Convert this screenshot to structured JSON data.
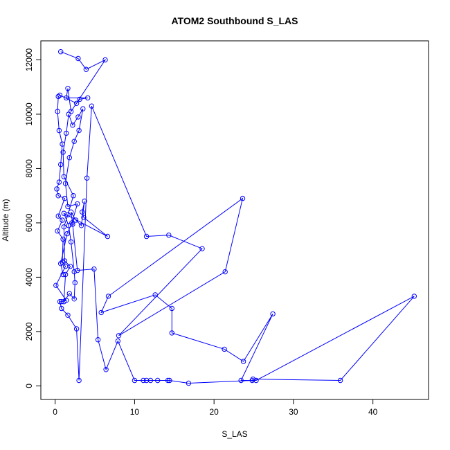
{
  "chart_data": {
    "type": "line",
    "title": "ATOM2 Southbound S_LAS",
    "xlabel": "S_LAS",
    "ylabel": "Altitude (m)",
    "xlim": [
      -1.8,
      47
    ],
    "ylim": [
      -500,
      12700
    ],
    "x_ticks": [
      0,
      10,
      20,
      30,
      40
    ],
    "y_ticks": [
      0,
      2000,
      4000,
      6000,
      8000,
      10000,
      12000
    ],
    "grid": false,
    "color": "#0000ff",
    "series": [
      {
        "points": [
          [
            0.7,
            12300
          ],
          [
            2.9,
            12050
          ],
          [
            3.9,
            11650
          ],
          [
            6.3,
            12000
          ],
          [
            2.0,
            10100
          ],
          [
            1.6,
            10950
          ],
          [
            1.4,
            10600
          ],
          [
            4.1,
            10600
          ],
          [
            3.1,
            10550
          ],
          [
            2.7,
            10400
          ],
          [
            0.6,
            10700
          ],
          [
            0.4,
            10650
          ],
          [
            0.3,
            10100
          ],
          [
            0.5,
            9400
          ],
          [
            0.9,
            8900
          ],
          [
            0.7,
            8150
          ],
          [
            0.5,
            7500
          ],
          [
            0.2,
            7250
          ],
          [
            0.4,
            7000
          ],
          [
            1.2,
            6900
          ],
          [
            0.4,
            6250
          ],
          [
            0.9,
            6100
          ],
          [
            0.3,
            5700
          ],
          [
            1.0,
            5400
          ],
          [
            0.9,
            4550
          ],
          [
            1.3,
            4400
          ],
          [
            0.1,
            3700
          ],
          [
            1.4,
            3150
          ],
          [
            0.8,
            3100
          ],
          [
            0.6,
            3100
          ],
          [
            0.8,
            2850
          ],
          [
            1.6,
            2600
          ],
          [
            2.7,
            2100
          ],
          [
            3.0,
            200
          ],
          [
            4.0,
            7650
          ],
          [
            4.6,
            10300
          ],
          [
            11.5,
            5500
          ],
          [
            14.3,
            5550
          ],
          [
            18.5,
            5050
          ],
          [
            8.0,
            1850
          ],
          [
            21.4,
            4200
          ],
          [
            23.6,
            6900
          ],
          [
            6.7,
            3300
          ],
          [
            5.8,
            2700
          ],
          [
            12.6,
            3350
          ],
          [
            14.7,
            2850
          ],
          [
            14.7,
            1950
          ],
          [
            21.3,
            1350
          ],
          [
            23.7,
            900
          ],
          [
            27.4,
            2650
          ],
          [
            23.4,
            200
          ],
          [
            25.3,
            200
          ],
          [
            45.2,
            3300
          ],
          [
            35.9,
            200
          ],
          [
            24.9,
            250
          ],
          [
            24.8,
            200
          ],
          [
            16.8,
            100
          ],
          [
            14.4,
            200
          ],
          [
            14.2,
            200
          ],
          [
            12.9,
            200
          ],
          [
            12.0,
            200
          ],
          [
            11.5,
            200
          ],
          [
            11.1,
            200
          ],
          [
            10.0,
            200
          ],
          [
            7.9,
            1650
          ],
          [
            6.4,
            600
          ],
          [
            5.4,
            1700
          ],
          [
            4.9,
            4300
          ],
          [
            2.8,
            4250
          ],
          [
            2.2,
            5950
          ],
          [
            2.0,
            6400
          ],
          [
            2.6,
            6100
          ],
          [
            3.3,
            5900
          ],
          [
            3.7,
            6800
          ],
          [
            3.4,
            6400
          ],
          [
            3.6,
            6200
          ],
          [
            6.6,
            5500
          ],
          [
            1.1,
            6350
          ],
          [
            1.7,
            5900
          ],
          [
            2.0,
            5300
          ],
          [
            2.4,
            4200
          ],
          [
            2.5,
            3800
          ],
          [
            2.4,
            3200
          ],
          [
            1.8,
            3400
          ],
          [
            1.1,
            3100
          ],
          [
            1.3,
            4100
          ],
          [
            1.9,
            4400
          ],
          [
            1.2,
            4600
          ],
          [
            1.1,
            5850
          ],
          [
            1.6,
            6300
          ],
          [
            2.3,
            7000
          ],
          [
            1.1,
            7700
          ],
          [
            1.0,
            8600
          ],
          [
            1.4,
            9300
          ],
          [
            1.7,
            10000
          ],
          [
            2.2,
            9600
          ],
          [
            2.9,
            9900
          ],
          [
            3.5,
            10200
          ],
          [
            3.0,
            9400
          ],
          [
            2.4,
            9000
          ],
          [
            1.8,
            8400
          ],
          [
            1.3,
            7450
          ],
          [
            1.6,
            6600
          ],
          [
            2.8,
            6700
          ],
          [
            2.1,
            6000
          ],
          [
            1.5,
            5600
          ],
          [
            0.7,
            4500
          ],
          [
            1.0,
            4100
          ]
        ]
      }
    ]
  }
}
